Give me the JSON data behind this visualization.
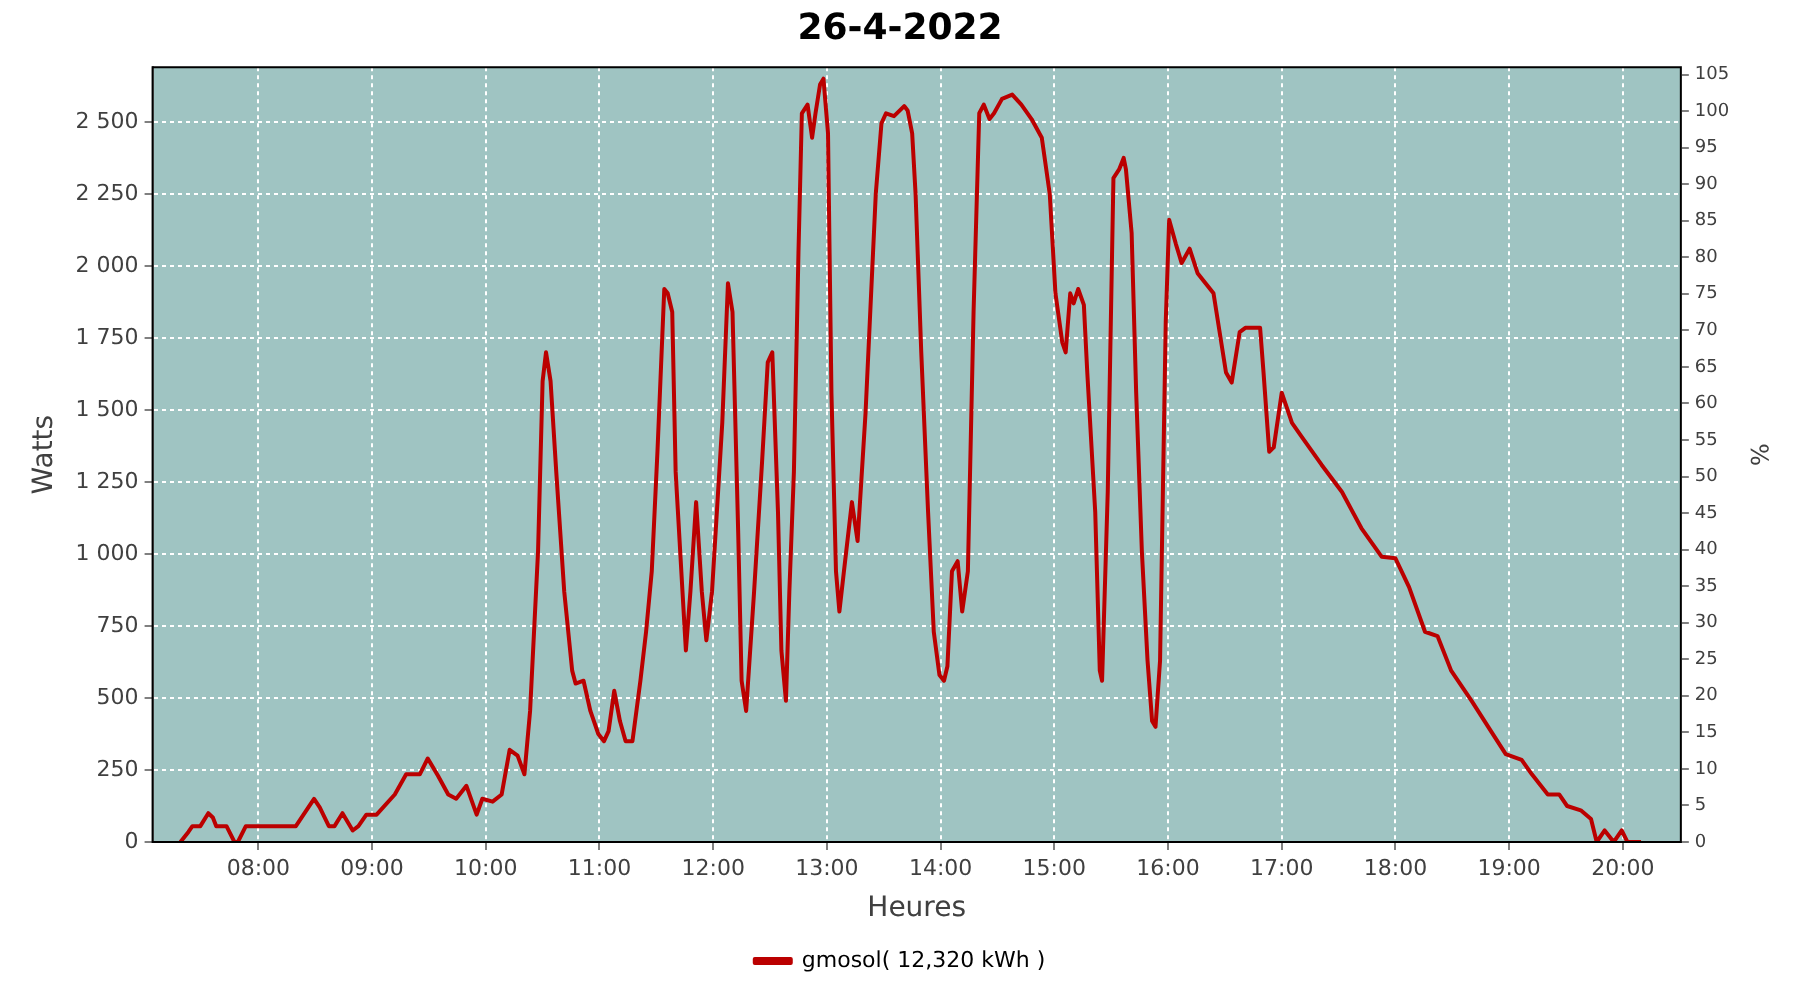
{
  "chart_data": {
    "type": "line",
    "title": "26-4-2022",
    "xlabel": "Heures",
    "ylabel": "Watts",
    "y2label": "%",
    "x": [
      7.315,
      7.385,
      7.42,
      7.49,
      7.56,
      7.6,
      7.63,
      7.72,
      7.79,
      7.82,
      7.89,
      8.33,
      8.44,
      8.49,
      8.54,
      8.62,
      8.67,
      8.74,
      8.83,
      8.88,
      8.95,
      9.04,
      9.2,
      9.3,
      9.42,
      9.49,
      9.58,
      9.67,
      9.74,
      9.83,
      9.92,
      9.97,
      10.06,
      10.14,
      10.21,
      10.28,
      10.34,
      10.39,
      10.46,
      10.5,
      10.53,
      10.57,
      10.62,
      10.69,
      10.76,
      10.79,
      10.86,
      10.92,
      10.99,
      11.04,
      11.08,
      11.13,
      11.18,
      11.23,
      11.29,
      11.36,
      11.41,
      11.46,
      11.51,
      11.57,
      11.6,
      11.64,
      11.67,
      11.73,
      11.76,
      11.8,
      11.85,
      11.9,
      11.94,
      11.99,
      12.08,
      12.13,
      12.17,
      12.22,
      12.25,
      12.29,
      12.36,
      12.43,
      12.48,
      12.52,
      12.57,
      12.6,
      12.64,
      12.67,
      12.71,
      12.75,
      12.78,
      12.83,
      12.87,
      12.9,
      12.94,
      12.97,
      13.01,
      13.04,
      13.08,
      13.11,
      13.15,
      13.22,
      13.27,
      13.34,
      13.43,
      13.48,
      13.52,
      13.59,
      13.68,
      13.71,
      13.75,
      13.78,
      13.83,
      13.89,
      13.94,
      13.99,
      14.03,
      14.06,
      14.1,
      14.15,
      14.19,
      14.24,
      14.29,
      14.34,
      14.38,
      14.43,
      14.47,
      14.54,
      14.63,
      14.71,
      14.8,
      14.89,
      14.96,
      15.01,
      15.07,
      15.1,
      15.14,
      15.17,
      15.21,
      15.26,
      15.29,
      15.36,
      15.4,
      15.42,
      15.47,
      15.52,
      15.57,
      15.61,
      15.63,
      15.68,
      15.72,
      15.77,
      15.82,
      15.86,
      15.89,
      15.93,
      15.98,
      16.01,
      16.07,
      16.12,
      16.19,
      16.26,
      16.33,
      16.4,
      16.51,
      16.56,
      16.63,
      16.68,
      16.81,
      16.84,
      16.89,
      16.93,
      17.0,
      17.09,
      17.17,
      17.35,
      17.53,
      17.7,
      17.88,
      18.0,
      18.12,
      18.26,
      18.37,
      18.49,
      18.67,
      18.84,
      18.97,
      19.11,
      19.2,
      19.34,
      19.44,
      19.51,
      19.63,
      19.72,
      19.77,
      19.84,
      19.92,
      19.99,
      20.04,
      20.16
    ],
    "series": [
      {
        "name": "gmosol( 12,320 kWh )",
        "color": "#bb0000",
        "values": [
          0,
          35,
          55,
          55,
          100,
          85,
          55,
          55,
          0,
          0,
          55,
          55,
          120,
          150,
          120,
          55,
          55,
          100,
          40,
          55,
          95,
          95,
          165,
          235,
          235,
          290,
          230,
          165,
          150,
          195,
          95,
          150,
          140,
          165,
          320,
          300,
          235,
          455,
          1010,
          1600,
          1700,
          1600,
          1285,
          870,
          595,
          550,
          560,
          455,
          375,
          350,
          385,
          525,
          420,
          350,
          350,
          560,
          730,
          940,
          1355,
          1920,
          1905,
          1840,
          1285,
          870,
          665,
          870,
          1180,
          870,
          700,
          870,
          1455,
          1940,
          1840,
          1075,
          560,
          455,
          870,
          1320,
          1665,
          1700,
          1145,
          665,
          490,
          870,
          1285,
          2045,
          2530,
          2560,
          2445,
          2530,
          2630,
          2650,
          2460,
          1560,
          940,
          800,
          940,
          1180,
          1045,
          1490,
          2250,
          2495,
          2530,
          2520,
          2555,
          2540,
          2460,
          2250,
          1700,
          1145,
          730,
          580,
          560,
          610,
          940,
          975,
          800,
          940,
          1840,
          2530,
          2560,
          2510,
          2530,
          2580,
          2595,
          2560,
          2510,
          2445,
          2250,
          1905,
          1735,
          1700,
          1905,
          1870,
          1920,
          1865,
          1630,
          1145,
          595,
          560,
          1215,
          2305,
          2335,
          2375,
          2335,
          2115,
          1560,
          1010,
          630,
          420,
          400,
          630,
          1805,
          2160,
          2075,
          2010,
          2060,
          1975,
          1940,
          1905,
          1630,
          1595,
          1770,
          1785,
          1785,
          1630,
          1355,
          1370,
          1560,
          1455,
          1410,
          1310,
          1215,
          1090,
          990,
          985,
          885,
          730,
          715,
          595,
          490,
          385,
          305,
          285,
          235,
          165,
          165,
          125,
          110,
          80,
          0,
          40,
          0,
          40,
          0,
          0
        ]
      }
    ],
    "xlim": [
      7.07,
      20.51
    ],
    "xticks": [
      {
        "value": 8,
        "label": "08:00"
      },
      {
        "value": 9,
        "label": "09:00"
      },
      {
        "value": 10,
        "label": "10:00"
      },
      {
        "value": 11,
        "label": "11:00"
      },
      {
        "value": 12,
        "label": "12:00"
      },
      {
        "value": 13,
        "label": "13:00"
      },
      {
        "value": 14,
        "label": "14:00"
      },
      {
        "value": 15,
        "label": "15:00"
      },
      {
        "value": 16,
        "label": "16:00"
      },
      {
        "value": 17,
        "label": "17:00"
      },
      {
        "value": 18,
        "label": "18:00"
      },
      {
        "value": 19,
        "label": "19:00"
      },
      {
        "value": 20,
        "label": "20:00"
      }
    ],
    "ylim": [
      0,
      2690
    ],
    "yticks": [
      0,
      250,
      500,
      750,
      {
        "value": 1000,
        "label": "1 000"
      },
      {
        "value": 1250,
        "label": "1 250"
      },
      {
        "value": 1500,
        "label": "1 500"
      },
      {
        "value": 1750,
        "label": "1 750"
      },
      {
        "value": 2000,
        "label": "2 000"
      },
      {
        "value": 2250,
        "label": "2 250"
      },
      {
        "value": 2500,
        "label": "2 500"
      }
    ],
    "y2lim": [
      0,
      106
    ],
    "y2ticks": [
      0,
      5,
      10,
      15,
      20,
      25,
      30,
      35,
      40,
      45,
      50,
      55,
      60,
      65,
      70,
      75,
      80,
      85,
      90,
      95,
      100,
      105
    ],
    "grid": true,
    "legend": "bottom",
    "marker": "none",
    "line_style": "solid"
  }
}
